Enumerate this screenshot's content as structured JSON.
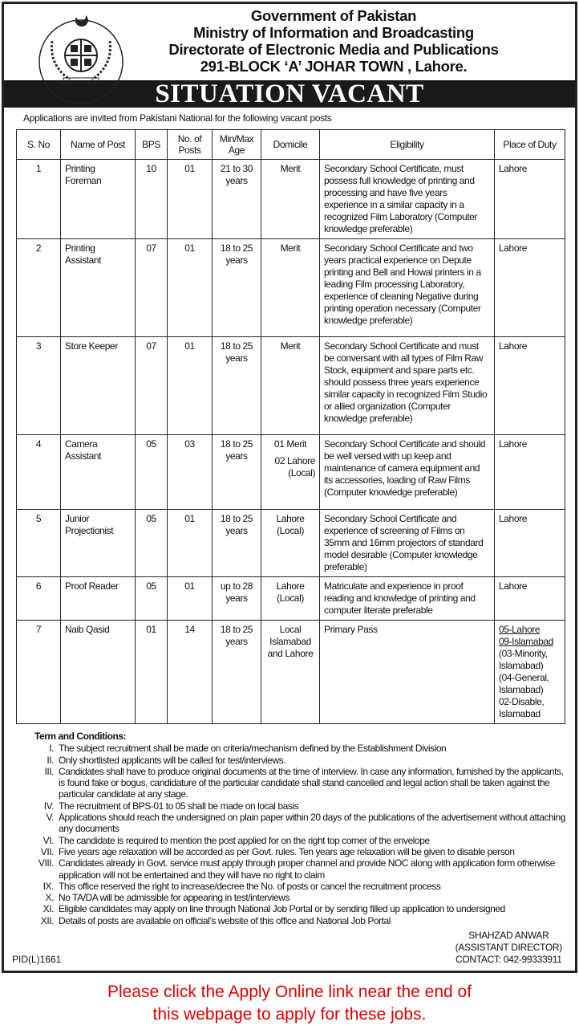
{
  "header": {
    "lines": [
      "Government of Pakistan",
      "Ministry of Information and Broadcasting",
      "Directorate of Electronic Media and Publications",
      "291-BLOCK ‘A’ JOHAR TOWN , Lahore."
    ],
    "logo_text": "DIRECTORATE OF ELECTRONIC MEDIA AND PUBLICATIONS"
  },
  "banner": "SITUATION VACANT",
  "intro": "Applications are invited from Pakistani National for the following vacant posts",
  "table": {
    "headers": [
      "S. No",
      "Name of Post",
      "BPS",
      "No. of Posts",
      "Min/Max Age",
      "Domicile",
      "Eligibility",
      "Place of Duty"
    ],
    "rows": [
      {
        "sno": "1",
        "post": "Printing Foreman",
        "bps": "10",
        "posts": "01",
        "age": "21 to 30 years",
        "domicile": "Merit",
        "eligibility": "Secondary School Certificate, must possess full knowledge of printing and processing and have five years experience in a similar capacity in a recognized Film Laboratory (Computer knowledge preferable)",
        "place": "Lahore"
      },
      {
        "sno": "2",
        "post": "Printing Assistant",
        "bps": "07",
        "posts": "01",
        "age": "18 to 25 years",
        "domicile": "Merit",
        "eligibility": "Secondary School Certificate and two years practical experience on Depute printing and Bell and Howal printers in a leading Film processing Laboratory, experience of cleaning Negative during printing operation necessary (Computer knowledge preferable)",
        "place": "Lahore"
      },
      {
        "sno": "3",
        "post": "Store Keeper",
        "bps": "07",
        "posts": "01",
        "age": "18 to 25 years",
        "domicile": "Merit",
        "eligibility": "Secondary School Certificate and must be conversant with all types of Film Raw Stock, equipment and spare parts etc. should possess three years experience similar capacity in recognized Film Studio or allied organization (Computer knowledge preferable)",
        "place": "Lahore"
      },
      {
        "sno": "4",
        "post": "Camera Assistant",
        "bps": "05",
        "posts": "03",
        "age": "18 to 25 years",
        "domicile": "01 Merit",
        "domicile2": "02 Lahore (Local)",
        "eligibility": "Secondary School Certificate and should be well versed with up keep and maintenance of camera equipment and its accessories, loading of Raw Films (Computer knowledge preferable)",
        "place": "Lahore"
      },
      {
        "sno": "5",
        "post": "Junior Projectionist",
        "bps": "05",
        "posts": "01",
        "age": "18 to 25 years",
        "domicile": "Lahore (Local)",
        "eligibility": "Secondary School Certificate and experience of screening of Films on 35mm and 16mm projectors of standard model desirable (Computer knowledge preferable)",
        "place": "Lahore"
      },
      {
        "sno": "6",
        "post": "Proof Reader",
        "bps": "05",
        "posts": "01",
        "age": "up to 28 years",
        "domicile": "Lahore (Local)",
        "eligibility": "Matriculate and experience in proof reading and knowledge of printing and computer literate preferable",
        "place": "Lahore"
      },
      {
        "sno": "7",
        "post": "Naib Qasid",
        "bps": "01",
        "posts": "14",
        "age": "18 to 25 years",
        "domicile": "Local Islamabad and Lahore",
        "eligibility": "Primary Pass",
        "place": "05-Lahore",
        "place_lines": [
          "09-Islamabad",
          "(03-Minority, Islamabad)",
          "(04-General, Islamabad)",
          "02-Disable, Islamabad"
        ]
      }
    ]
  },
  "terms": {
    "title": "Term and Conditions:",
    "items": [
      {
        "n": "I.",
        "text": "The subject recruitment shall be made on criteria/mechanism defined by the Establishment Division"
      },
      {
        "n": "II.",
        "text": "Only shortlisted applicants will be called for test/interviews."
      },
      {
        "n": "III.",
        "text": "Candidates shall have to produce original documents at the time of interview. In case any information, furnished by the applicants, is found fake or bogus, candidature of the particular candidate shall stand cancelled and legal action shall be taken against the particular candidate at any stage."
      },
      {
        "n": "IV.",
        "text": "The recruitment of BPS-01 to 05 shall be made on local basis"
      },
      {
        "n": "V.",
        "text": "Applications should reach the undersigned on plain paper within 20 days of the publications of the advertisement without attaching any documents"
      },
      {
        "n": "VI.",
        "text": "The candidate is required to mention the post applied for on the right top corner of the envelope"
      },
      {
        "n": "VII.",
        "text": "Five years age relaxation will be accorded as per Govt. rules. Ten years age relaxation will be given to disable person"
      },
      {
        "n": "VIII.",
        "text": "Candidates already in Govt. service must apply through proper channel and provide NOC along with application form otherwise application will not be entertained and they will have no right to claim"
      },
      {
        "n": "IX.",
        "text": "This office reserved the right to increase/decree the No. of posts or cancel the recruitment process"
      },
      {
        "n": "X.",
        "text": "No TA/DA will be admissible for appearing in test/interviews"
      },
      {
        "n": "XI.",
        "text": "Eligible candidates may apply on line through National Job Portal or by sending filled up application to undersigned"
      },
      {
        "n": "XII.",
        "text": "Details of posts are available on official’s website of this office and National Job Portal"
      }
    ]
  },
  "signature": {
    "name": "SHAHZAD ANWAR",
    "title": "(ASSISTANT DIRECTOR)",
    "contact": "CONTACT: 042-99333911"
  },
  "pid": "PID(L)1661",
  "notice": {
    "line1": "Please click the Apply Online link near the end of",
    "line2": "this webpage to apply for these jobs.",
    "color": "#e00000"
  }
}
